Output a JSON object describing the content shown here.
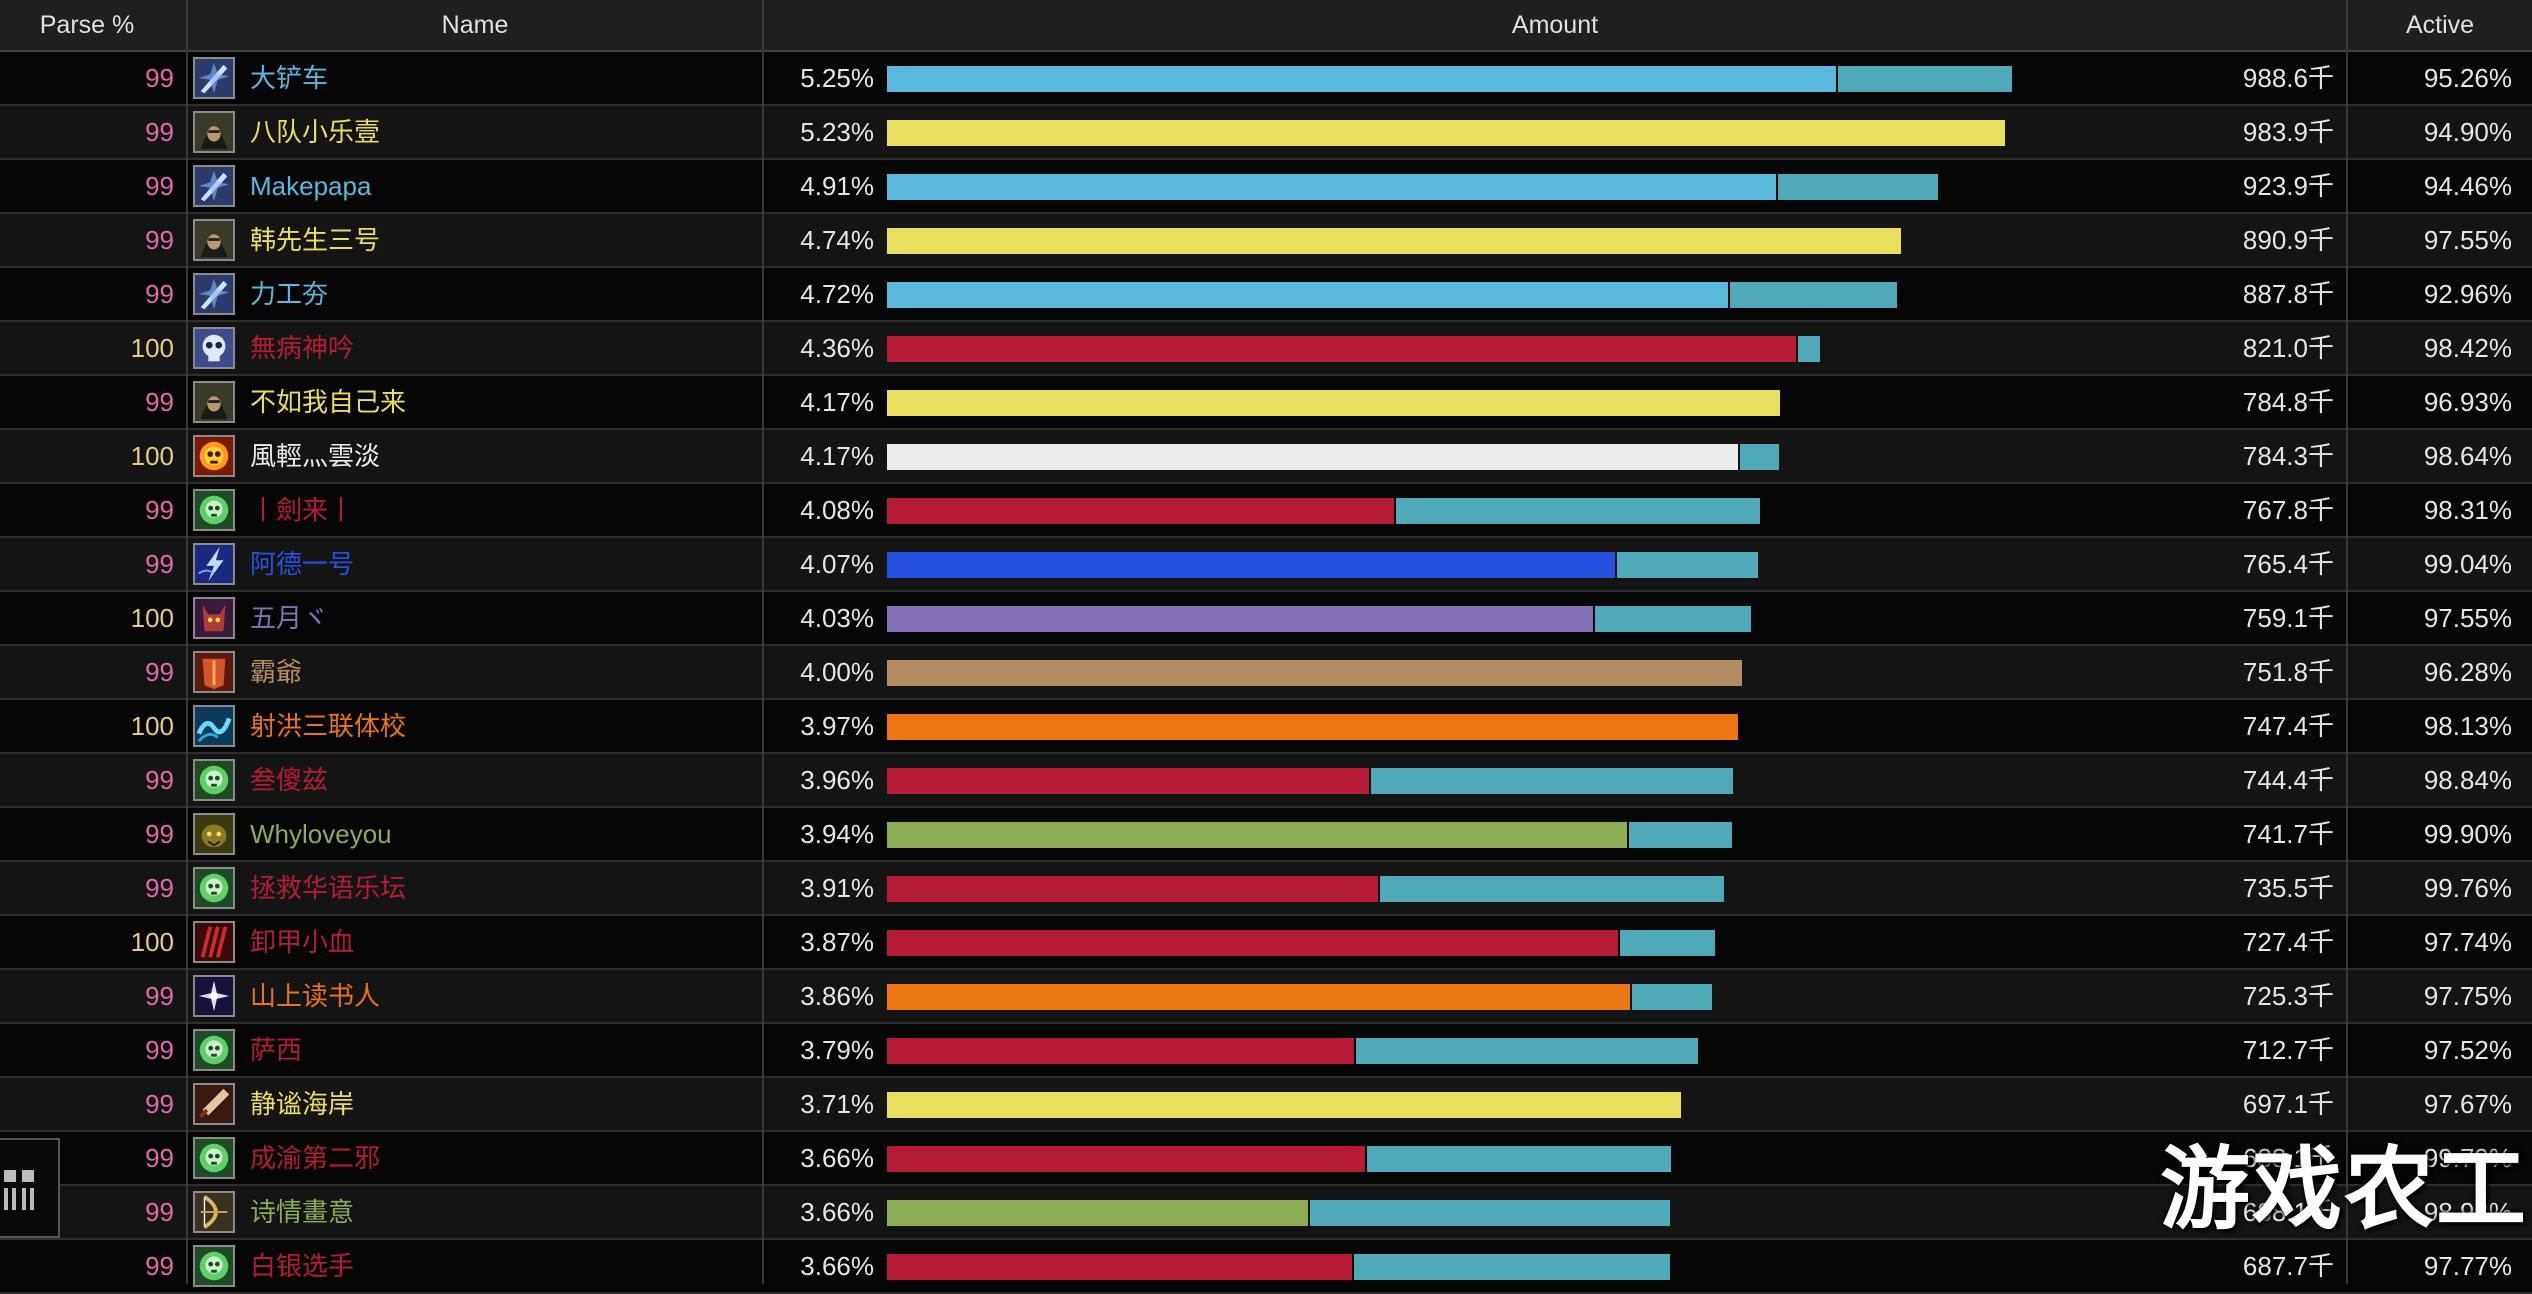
{
  "header": {
    "parse": "Parse %",
    "name": "Name",
    "amount": "Amount",
    "active": "Active"
  },
  "colors": {
    "mage": "#5ab8dd",
    "rogue": "#e8df5e",
    "deathknight": "#b61b35",
    "priest": "#ececec",
    "shaman": "#2651e0",
    "warlock": "#8470b5",
    "warrior": "#b58d62",
    "druid": "#ea7511",
    "hunter": "#8cad56",
    "extra": "#4fa9b8"
  },
  "max_total": 1000,
  "rows": [
    {
      "parse": "99",
      "name": "大铲车",
      "pct": "5.25%",
      "amount": "988.6千",
      "active": "95.26%",
      "color": "mage",
      "main": 851,
      "extra": 158,
      "icon": "frost-shard-icon"
    },
    {
      "parse": "99",
      "name": "八队小乐壹",
      "pct": "5.23%",
      "amount": "983.9千",
      "active": "94.90%",
      "color": "rogue",
      "main": 1003,
      "extra": 0,
      "icon": "hooded-rogue-icon"
    },
    {
      "parse": "99",
      "name": "Makepapa",
      "pct": "4.91%",
      "amount": "923.9千",
      "active": "94.46%",
      "color": "mage",
      "main": 797,
      "extra": 146,
      "icon": "frost-shard-icon"
    },
    {
      "parse": "99",
      "name": "韩先生三号",
      "pct": "4.74%",
      "amount": "890.9千",
      "active": "97.55%",
      "color": "rogue",
      "main": 909,
      "extra": 0,
      "icon": "hooded-rogue-icon"
    },
    {
      "parse": "99",
      "name": "力工夯",
      "pct": "4.72%",
      "amount": "887.8千",
      "active": "92.96%",
      "color": "mage",
      "main": 754,
      "extra": 152,
      "icon": "frost-shard-icon"
    },
    {
      "parse": "100",
      "name": "無病神吟",
      "pct": "4.36%",
      "amount": "821.0千",
      "active": "98.42%",
      "color": "deathknight",
      "main": 815,
      "extra": 22,
      "icon": "skull-frost-icon"
    },
    {
      "parse": "99",
      "name": "不如我自己来",
      "pct": "4.17%",
      "amount": "784.8千",
      "active": "96.93%",
      "color": "rogue",
      "main": 801,
      "extra": 0,
      "icon": "hooded-rogue-icon"
    },
    {
      "parse": "100",
      "name": "風輕灬雲淡",
      "pct": "4.17%",
      "amount": "784.3千",
      "active": "98.64%",
      "color": "priest",
      "main": 763,
      "extra": 37,
      "icon": "fire-skull-icon"
    },
    {
      "parse": "99",
      "name": "丨劍来丨",
      "pct": "4.08%",
      "amount": "767.8千",
      "active": "98.31%",
      "color": "deathknight",
      "main": 455,
      "extra": 328,
      "icon": "plague-skull-icon"
    },
    {
      "parse": "99",
      "name": "阿德一号",
      "pct": "4.07%",
      "amount": "765.4千",
      "active": "99.04%",
      "color": "shaman",
      "main": 653,
      "extra": 128,
      "icon": "lightning-icon"
    },
    {
      "parse": "100",
      "name": "五月ヾ",
      "pct": "4.03%",
      "amount": "759.1千",
      "active": "97.55%",
      "color": "warlock",
      "main": 633,
      "extra": 142,
      "icon": "demon-face-icon"
    },
    {
      "parse": "99",
      "name": "霸爺",
      "pct": "4.00%",
      "amount": "751.8千",
      "active": "96.28%",
      "color": "warrior",
      "main": 767,
      "extra": 0,
      "icon": "armor-icon"
    },
    {
      "parse": "100",
      "name": "射洪三联体校",
      "pct": "3.97%",
      "amount": "747.4千",
      "active": "98.13%",
      "color": "druid",
      "main": 763,
      "extra": 0,
      "icon": "water-wave-icon"
    },
    {
      "parse": "99",
      "name": "叁傻兹",
      "pct": "3.96%",
      "amount": "744.4千",
      "active": "98.84%",
      "color": "deathknight",
      "main": 432,
      "extra": 327,
      "icon": "plague-skull-icon"
    },
    {
      "parse": "99",
      "name": "Whyloveyou",
      "pct": "3.94%",
      "amount": "741.7千",
      "active": "99.90%",
      "color": "hunter",
      "main": 664,
      "extra": 94,
      "icon": "beast-icon"
    },
    {
      "parse": "99",
      "name": "拯救华语乐坛",
      "pct": "3.91%",
      "amount": "735.5千",
      "active": "99.76%",
      "color": "deathknight",
      "main": 440,
      "extra": 311,
      "icon": "plague-skull-icon"
    },
    {
      "parse": "100",
      "name": "卸甲小血",
      "pct": "3.87%",
      "amount": "727.4千",
      "active": "97.74%",
      "color": "deathknight",
      "main": 656,
      "extra": 87,
      "icon": "blood-claw-icon"
    },
    {
      "parse": "99",
      "name": "山上读书人",
      "pct": "3.86%",
      "amount": "725.3千",
      "active": "97.75%",
      "color": "druid",
      "main": 666,
      "extra": 74,
      "icon": "starfall-icon"
    },
    {
      "parse": "99",
      "name": "萨西",
      "pct": "3.79%",
      "amount": "712.7千",
      "active": "97.52%",
      "color": "deathknight",
      "main": 419,
      "extra": 308,
      "icon": "plague-skull-icon"
    },
    {
      "parse": "99",
      "name": "静谧海岸",
      "pct": "3.71%",
      "amount": "697.1千",
      "active": "97.67%",
      "color": "rogue",
      "main": 712,
      "extra": 0,
      "icon": "dagger-icon"
    },
    {
      "parse": "99",
      "name": "成渝第二邪",
      "pct": "3.66%",
      "amount": "688.1千",
      "active": "99.79%",
      "color": "deathknight",
      "main": 429,
      "extra": 274,
      "icon": "plague-skull-icon"
    },
    {
      "parse": "99",
      "name": "诗情畫意",
      "pct": "3.66%",
      "amount": "688.1千",
      "active": "98.98%",
      "color": "hunter",
      "main": 378,
      "extra": 324,
      "icon": "bow-icon"
    },
    {
      "parse": "99",
      "name": "白银选手",
      "pct": "3.66%",
      "amount": "687.7千",
      "active": "97.77%",
      "color": "deathknight",
      "main": 417,
      "extra": 285,
      "icon": "plague-skull-icon"
    }
  ],
  "parse_colors": {
    "99": "#e268a8",
    "100": "#e5cc80"
  },
  "watermark": "游戏农工"
}
